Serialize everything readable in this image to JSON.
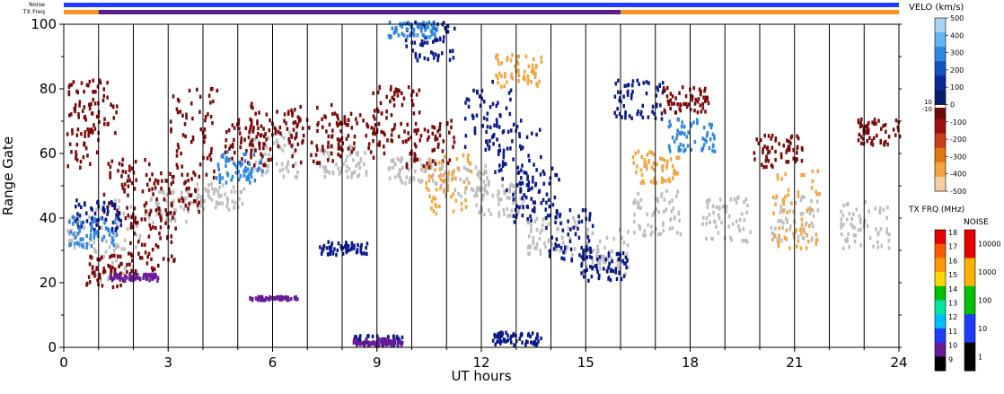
{
  "chart_data": {
    "type": "heatmap",
    "title": "",
    "xlabel": "UT hours",
    "ylabel": "Range Gate",
    "xlim": [
      0,
      24
    ],
    "ylim": [
      0,
      100
    ],
    "x_ticks": [
      "0",
      "3",
      "6",
      "9",
      "12",
      "15",
      "18",
      "21",
      "24"
    ],
    "y_ticks": [
      "0",
      "20",
      "40",
      "60",
      "80",
      "100"
    ],
    "grid": "vertical lines each hour",
    "top_strips": {
      "noise_label": "Noise",
      "freq_label": "TX Freq",
      "freq_segments": [
        {
          "from": 0,
          "to": 1,
          "color": "#f7931e"
        },
        {
          "from": 1,
          "to": 16,
          "color": "#5a1d8a"
        },
        {
          "from": 16,
          "to": 24,
          "color": "#f7931e"
        }
      ]
    },
    "velocity_scale": {
      "title": "VELO (km/s)",
      "ticks": [
        "500",
        "400",
        "300",
        "200",
        "100",
        "0",
        "-100",
        "-200",
        "-300",
        "-400",
        "-500"
      ],
      "inner_labels": [
        "10",
        "-10"
      ],
      "colors": [
        "#a9d3f5",
        "#64b5f0",
        "#2f87e0",
        "#1252c0",
        "#0a2a9a",
        "#071c6e",
        "#6e0a0a",
        "#a11010",
        "#c8401a",
        "#e07a10",
        "#f2a440",
        "#f7cfa0"
      ]
    },
    "freq_scale": {
      "title": "TX FRQ (MHz)",
      "ticks": [
        "18",
        "17",
        "16",
        "15",
        "14",
        "13",
        "12",
        "11",
        "10",
        "9"
      ],
      "colors": [
        "#e60000",
        "#ff5a00",
        "#ff9900",
        "#ffd700",
        "#00c000",
        "#00e5a0",
        "#00bfff",
        "#1e3cff",
        "#6a1b9a",
        "#000000"
      ]
    },
    "noise_scale": {
      "title": "NOISE",
      "ticks": [
        "10000",
        "1000",
        "100",
        "10",
        "1"
      ],
      "colors": [
        "#e60000",
        "#ffb000",
        "#00c000",
        "#1e3cff",
        "#000000"
      ]
    },
    "series": [
      {
        "color": "#bdbdbd",
        "values": [
          [
            0.2,
            30,
            40
          ],
          [
            1.5,
            20,
            45
          ],
          [
            3,
            38,
            48
          ],
          [
            4.5,
            42,
            50
          ],
          [
            6,
            52,
            66
          ],
          [
            8,
            52,
            62
          ],
          [
            10,
            50,
            58
          ],
          [
            11.5,
            46,
            56
          ],
          [
            12.5,
            40,
            50
          ],
          [
            14,
            28,
            40
          ],
          [
            15.5,
            22,
            36
          ],
          [
            17,
            34,
            48
          ],
          [
            19,
            32,
            46
          ],
          [
            21,
            32,
            46
          ],
          [
            23,
            30,
            45
          ]
        ]
      },
      {
        "color": "#7a0a0a",
        "values": [
          [
            0.3,
            55,
            75
          ],
          [
            0.8,
            65,
            82
          ],
          [
            1.3,
            18,
            28
          ],
          [
            1.8,
            38,
            58
          ],
          [
            2.5,
            22,
            40
          ],
          [
            3.2,
            40,
            55
          ],
          [
            3.7,
            50,
            80
          ],
          [
            5.3,
            55,
            70
          ],
          [
            6,
            60,
            75
          ],
          [
            7.2,
            55,
            75
          ],
          [
            8.5,
            58,
            72
          ],
          [
            9.5,
            62,
            80
          ],
          [
            10.5,
            55,
            70
          ],
          [
            17.8,
            72,
            80
          ],
          [
            20.5,
            55,
            65
          ],
          [
            23.5,
            62,
            70
          ]
        ]
      },
      {
        "color": "#0a1a8a",
        "values": [
          [
            1,
            35,
            45
          ],
          [
            8,
            28,
            32
          ],
          [
            10.5,
            88,
            100
          ],
          [
            12.2,
            60,
            82
          ],
          [
            13,
            45,
            70
          ],
          [
            13.5,
            38,
            55
          ],
          [
            14.5,
            26,
            42
          ],
          [
            15.5,
            20,
            30
          ],
          [
            16.5,
            70,
            82
          ],
          [
            9,
            0,
            3
          ],
          [
            13,
            0,
            4
          ]
        ]
      },
      {
        "color": "#2f87e0",
        "values": [
          [
            0.8,
            30,
            40
          ],
          [
            5,
            50,
            60
          ],
          [
            10,
            95,
            100
          ],
          [
            18,
            60,
            70
          ]
        ]
      },
      {
        "color": "#f2a440",
        "values": [
          [
            11,
            40,
            60
          ],
          [
            13,
            80,
            90
          ],
          [
            21,
            30,
            55
          ],
          [
            17,
            50,
            60
          ]
        ]
      },
      {
        "color": "#6a1b9a",
        "values": [
          [
            9,
            0,
            2
          ],
          [
            6,
            14,
            15
          ],
          [
            2,
            20,
            22
          ]
        ]
      }
    ]
  }
}
